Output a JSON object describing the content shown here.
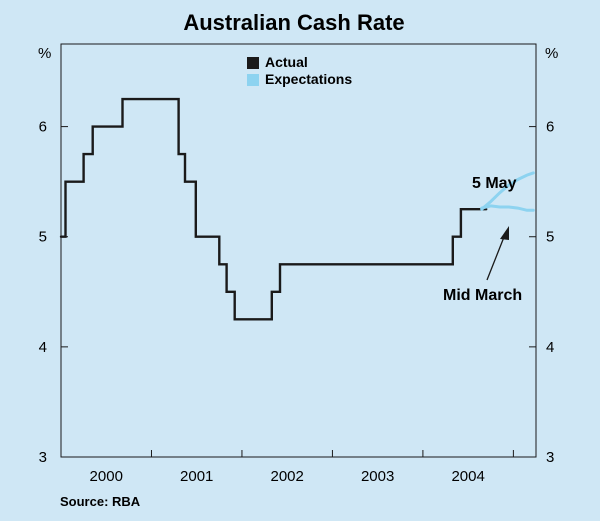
{
  "chart_data": {
    "type": "line",
    "title": "Australian Cash Rate",
    "left_unit": "%",
    "right_unit": "%",
    "ylim": [
      3,
      6.75
    ],
    "y_ticks": [
      3,
      4,
      5,
      6
    ],
    "xlim": [
      1999.5,
      2004.75
    ],
    "x_ticks": [
      {
        "label": "2000",
        "value": 2000
      },
      {
        "label": "2001",
        "value": 2001
      },
      {
        "label": "2002",
        "value": 2002
      },
      {
        "label": "2003",
        "value": 2003
      },
      {
        "label": "2004",
        "value": 2004
      }
    ],
    "year_dividers": [
      1999.5,
      2000.5,
      2001.5,
      2002.5,
      2003.5,
      2004.5
    ],
    "grid": false,
    "legend": {
      "placement": "top-center",
      "items": [
        {
          "label": "Actual",
          "color": "#1a1a1a"
        },
        {
          "label": "Expectations",
          "color": "#8dd3f0"
        }
      ]
    },
    "series": [
      {
        "name": "Actual",
        "color": "#1a1a1a",
        "step": true,
        "x": [
          1999.5,
          1999.55,
          1999.75,
          1999.85,
          1999.92,
          2000.18,
          2000.33,
          2000.8,
          2000.87,
          2000.92,
          2000.99,
          2001.08,
          2001.25,
          2001.33,
          2001.42,
          2001.83,
          2001.92,
          2002.0,
          2002.25,
          2002.5,
          2002.75,
          2003.0,
          2003.25,
          2003.5,
          2003.75,
          2003.83,
          2003.92,
          2004.2
        ],
        "values": [
          5.0,
          5.5,
          5.75,
          6.0,
          6.0,
          6.25,
          6.25,
          5.75,
          5.5,
          5.5,
          5.0,
          5.0,
          4.75,
          4.5,
          4.25,
          4.5,
          4.75,
          4.75,
          4.75,
          4.75,
          4.75,
          4.75,
          4.75,
          4.75,
          4.75,
          5.0,
          5.25,
          5.25
        ]
      },
      {
        "name": "Expectations",
        "color": "#8dd3f0",
        "step": false,
        "x": [
          2004.15,
          2004.25,
          2004.35,
          2004.45,
          2004.55,
          2004.65,
          2004.72
        ],
        "values": [
          5.25,
          5.32,
          5.4,
          5.47,
          5.52,
          5.56,
          5.58
        ]
      },
      {
        "name": "Expectations",
        "color": "#8dd3f0",
        "step": false,
        "x": [
          2004.15,
          2004.25,
          2004.35,
          2004.45,
          2004.55,
          2004.65,
          2004.72
        ],
        "values": [
          5.26,
          5.28,
          5.27,
          5.27,
          5.26,
          5.24,
          5.24
        ]
      }
    ],
    "annotations": [
      {
        "text": "5 May",
        "x": 2004.35,
        "y": 5.65
      },
      {
        "text": "Mid March",
        "x": 2004.05,
        "y": 4.52
      }
    ],
    "source": "Source: RBA"
  }
}
